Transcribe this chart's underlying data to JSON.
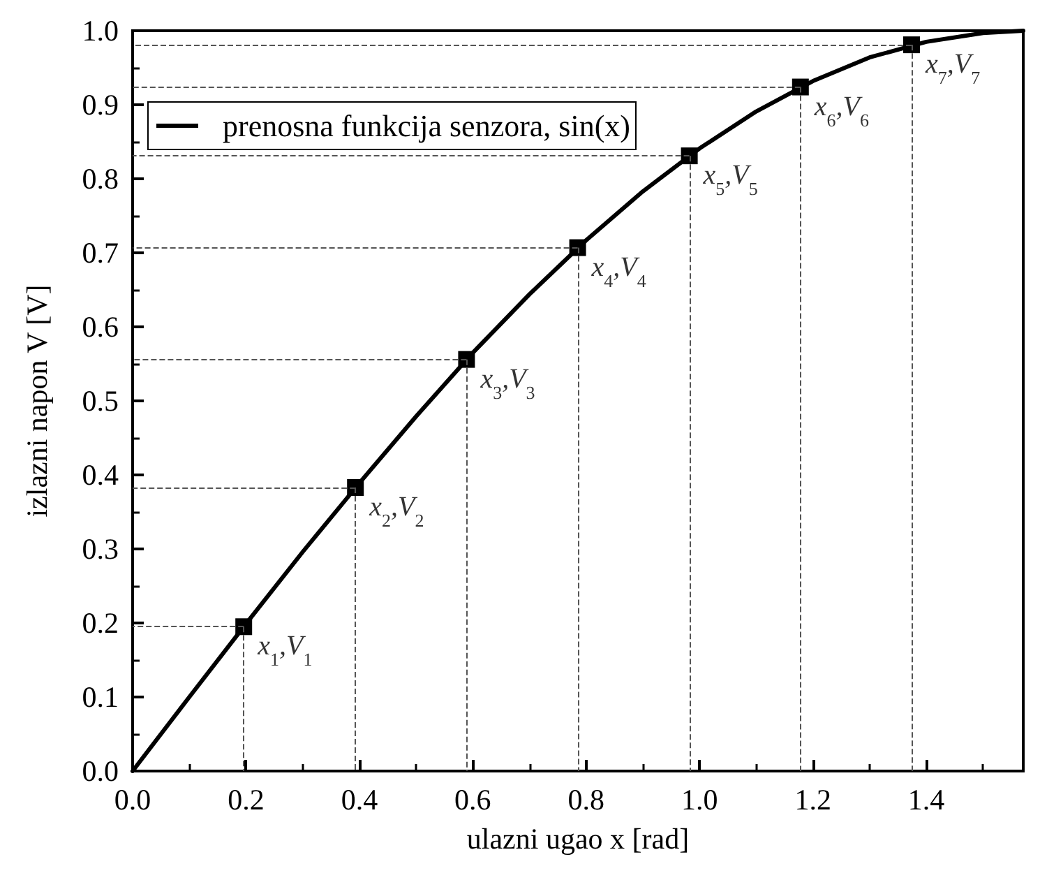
{
  "chart_data": {
    "type": "line",
    "xlabel": "ulazni ugao x [rad]",
    "ylabel": "izlazni napon V [V]",
    "xlim": [
      0,
      1.571
    ],
    "ylim": [
      0,
      1.0
    ],
    "xticks": [
      {
        "value": 0,
        "label": "0.0"
      },
      {
        "value": 0.2,
        "label": "0.2"
      },
      {
        "value": 0.4,
        "label": "0.4"
      },
      {
        "value": 0.6,
        "label": "0.6"
      },
      {
        "value": 0.8,
        "label": "0.8"
      },
      {
        "value": 1.0,
        "label": "1.0"
      },
      {
        "value": 1.2,
        "label": "1.2"
      },
      {
        "value": 1.4,
        "label": "1.4"
      }
    ],
    "yticks": [
      {
        "value": 0,
        "label": "0.0"
      },
      {
        "value": 0.1,
        "label": "0.1"
      },
      {
        "value": 0.2,
        "label": "0.2"
      },
      {
        "value": 0.3,
        "label": "0.3"
      },
      {
        "value": 0.4,
        "label": "0.4"
      },
      {
        "value": 0.5,
        "label": "0.5"
      },
      {
        "value": 0.6,
        "label": "0.6"
      },
      {
        "value": 0.7,
        "label": "0.7"
      },
      {
        "value": 0.8,
        "label": "0.8"
      },
      {
        "value": 0.9,
        "label": "0.9"
      },
      {
        "value": 1.0,
        "label": "1.0"
      }
    ],
    "grid": false,
    "legend": "top left",
    "series": [
      {
        "name": "prenosna funkcija senzora, sin(x)",
        "color": "#000000",
        "marker": "none",
        "line_style": "solid",
        "x": [
          0,
          0.1,
          0.2,
          0.3,
          0.4,
          0.5,
          0.6,
          0.7,
          0.8,
          0.9,
          1.0,
          1.1,
          1.2,
          1.3,
          1.4,
          1.5,
          1.571
        ],
        "values": [
          0,
          0.1,
          0.199,
          0.296,
          0.389,
          0.479,
          0.565,
          0.644,
          0.717,
          0.783,
          0.841,
          0.891,
          0.932,
          0.964,
          0.985,
          0.997,
          1.0
        ]
      },
      {
        "type": "scatter",
        "color": "#000000",
        "marker": "square",
        "line_style": "dashed",
        "x": [
          0.196,
          0.393,
          0.589,
          0.785,
          0.982,
          1.178,
          1.374
        ],
        "values": [
          0.195,
          0.383,
          0.556,
          0.707,
          0.831,
          0.924,
          0.981
        ]
      }
    ],
    "annotations": [
      {
        "text": "x$_{1}$,V$_{1}$",
        "x": 0.196,
        "y": 0.195
      },
      {
        "text": "x$_{2}$,V$_{2}$",
        "x": 0.393,
        "y": 0.383
      },
      {
        "text": "x$_{3}$,V$_{3}$",
        "x": 0.589,
        "y": 0.556
      },
      {
        "text": "x$_{4}$,V$_{4}$",
        "x": 0.785,
        "y": 0.707
      },
      {
        "text": "x$_{5}$,V$_{5}$",
        "x": 0.982,
        "y": 0.831
      },
      {
        "text": "x$_{6}$,V$_{6}$",
        "x": 1.178,
        "y": 0.924
      },
      {
        "text": "x$_{7}$,V$_{7}$",
        "x": 1.374,
        "y": 0.981
      }
    ]
  }
}
